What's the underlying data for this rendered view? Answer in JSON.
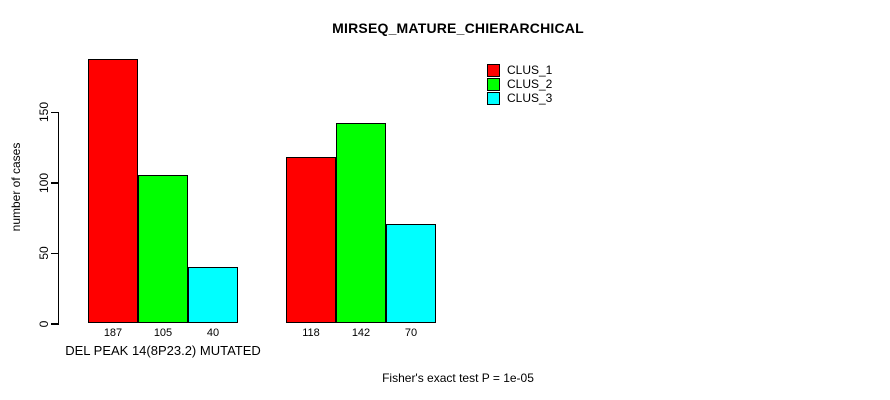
{
  "chart_data": {
    "type": "bar",
    "title": "MIRSEQ_MATURE_CHIERARCHICAL",
    "ylabel": "number of cases",
    "categories": [
      "DEL PEAK 14(8P23.2) MUTATED",
      ""
    ],
    "series": [
      {
        "name": "CLUS_1",
        "color": "#ff0000",
        "values": [
          187,
          118
        ]
      },
      {
        "name": "CLUS_2",
        "color": "#00ff00",
        "values": [
          105,
          142
        ]
      },
      {
        "name": "CLUS_3",
        "color": "#00ffff",
        "values": [
          40,
          70
        ]
      }
    ],
    "yticks": [
      0,
      50,
      100,
      150
    ],
    "ylim": [
      0,
      190
    ],
    "grid": false,
    "legend_position": "top-right",
    "show_bar_value_labels": true,
    "annotation": "Fisher's exact test P = 1e-05",
    "axis_color": "#000000",
    "text_color": "#000000",
    "background_color": "#ffffff"
  }
}
